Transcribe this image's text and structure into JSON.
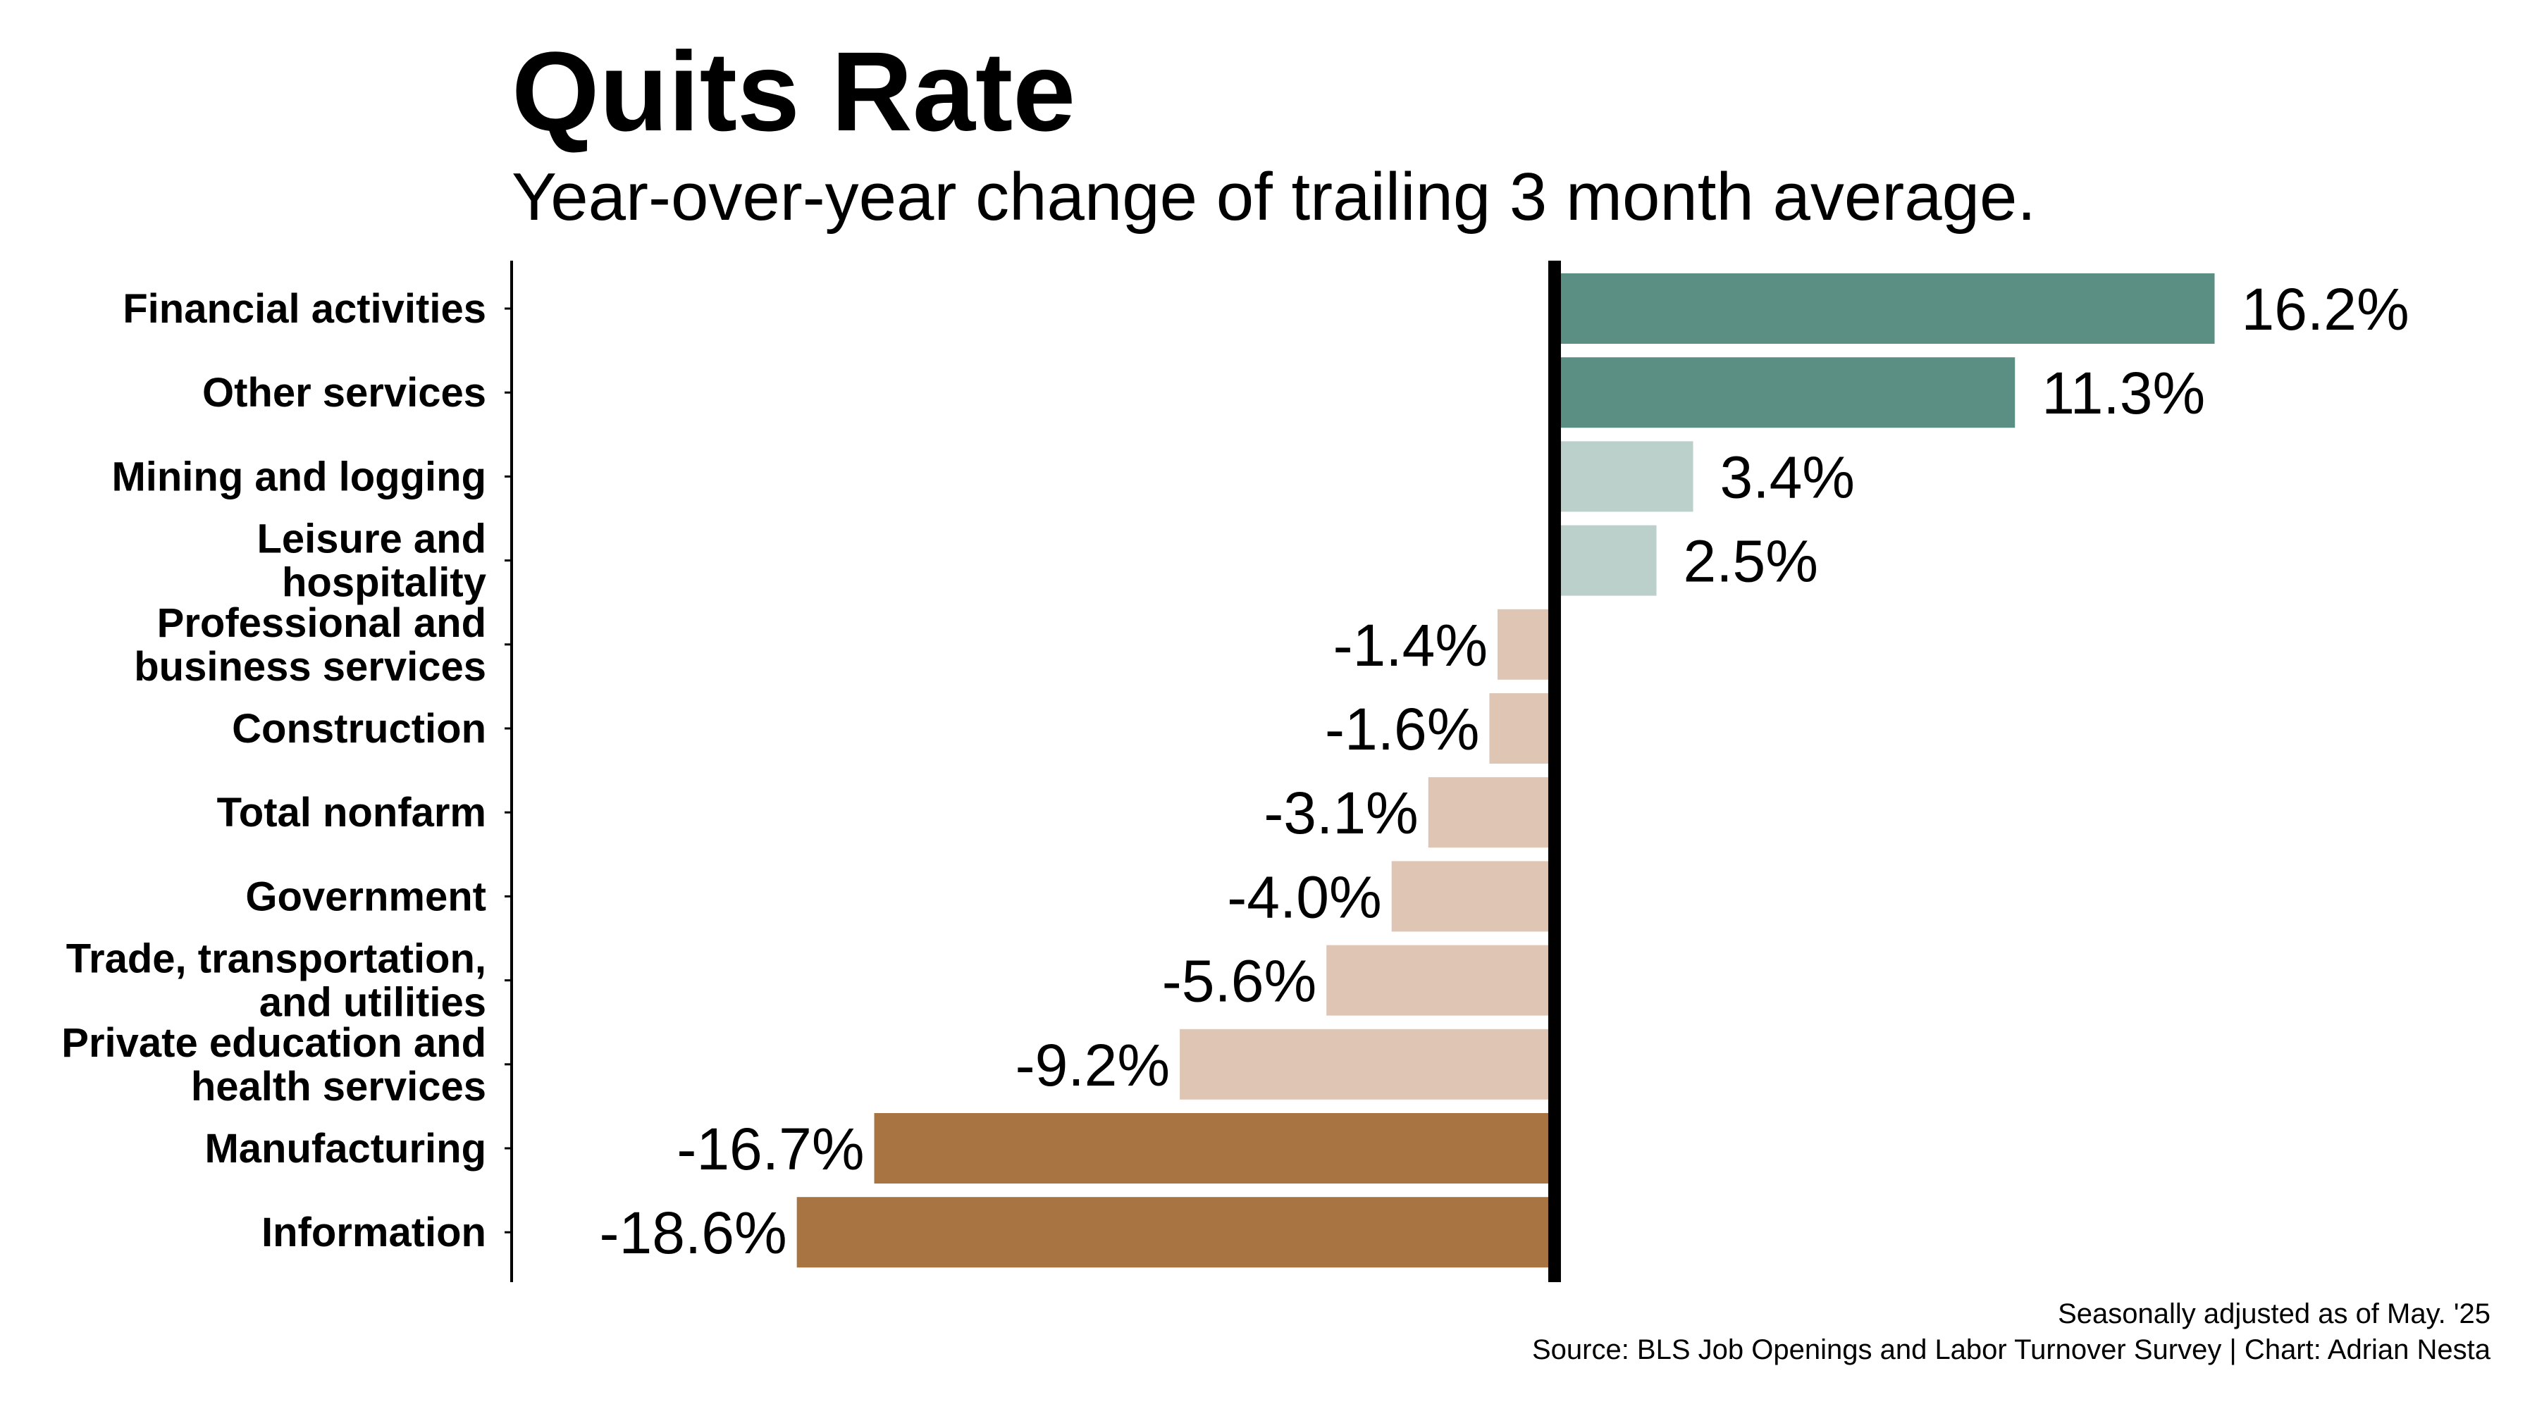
{
  "chart_data": {
    "type": "bar",
    "orientation": "horizontal",
    "title": "Quits Rate",
    "subtitle": "Year-over-year change of trailing 3 month average.",
    "value_suffix": "%",
    "categories": [
      "Financial activities",
      "Other services",
      "Mining and logging",
      "Leisure and hospitality",
      "Professional and business services",
      "Construction",
      "Total nonfarm",
      "Government",
      "Trade, transportation, and utilities",
      "Private education and health services",
      "Manufacturing",
      "Information"
    ],
    "category_display": [
      [
        "Financial activities"
      ],
      [
        "Other services"
      ],
      [
        "Mining and logging"
      ],
      [
        "Leisure and",
        "hospitality"
      ],
      [
        "Professional and",
        "business services"
      ],
      [
        "Construction"
      ],
      [
        "Total nonfarm"
      ],
      [
        "Government"
      ],
      [
        "Trade, transportation,",
        "and utilities"
      ],
      [
        "Private education and",
        "health services"
      ],
      [
        "Manufacturing"
      ],
      [
        "Information"
      ]
    ],
    "values": [
      16.2,
      11.3,
      3.4,
      2.5,
      -1.4,
      -1.6,
      -3.1,
      -4.0,
      -5.6,
      -9.2,
      -16.7,
      -18.6
    ],
    "data_labels": [
      "16.2%",
      "11.3%",
      "3.4%",
      "2.5%",
      "-1.4%",
      "-1.6%",
      "-3.1%",
      "-4.0%",
      "-5.6%",
      "-9.2%",
      "-16.7%",
      "-18.6%"
    ],
    "xlim": [
      -25.6,
      21.0
    ],
    "grid": false,
    "legend": "none",
    "colors": {
      "strong_positive": "#5b8f84",
      "mild_positive": "#bbcfcb",
      "mild_negative": "#dfc5b3",
      "strong_negative": "#a87442",
      "zero_line": "#000000"
    },
    "color_thresholds": {
      "strong": 10
    }
  },
  "caption": {
    "line1": "Seasonally adjusted as of May. '25",
    "line2": "Source: BLS Job Openings and Labor Turnover Survey | Chart: Adrian Nesta"
  }
}
